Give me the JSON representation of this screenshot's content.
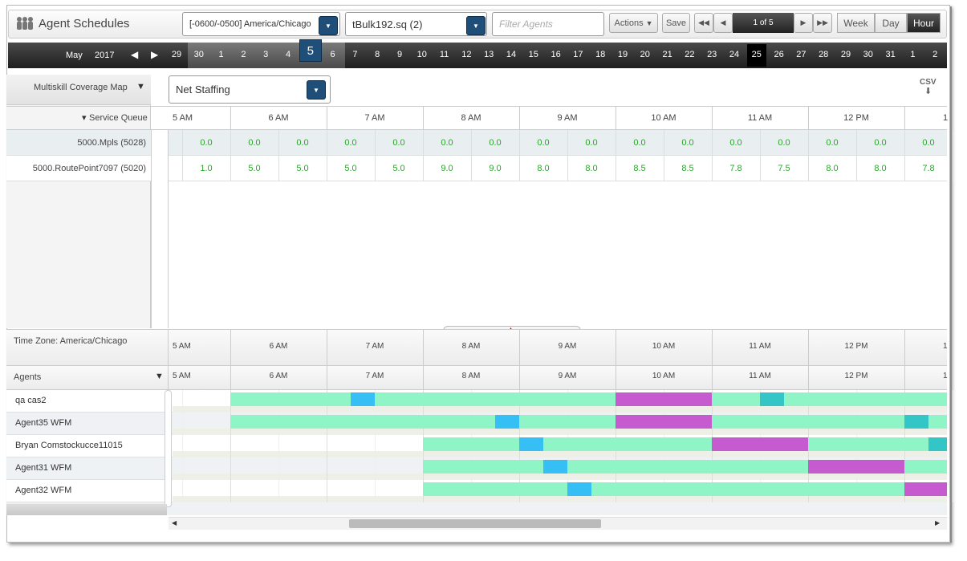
{
  "header": {
    "title": "Agent Schedules",
    "timezone": "[-0600/-0500] America/Chicago",
    "queue": "tBulk192.sq (2)",
    "filter_placeholder": "Filter Agents",
    "actions": "Actions",
    "save": "Save",
    "pager": "1 of 5",
    "views": [
      "Week",
      "Day",
      "Hour"
    ]
  },
  "date_bar": {
    "month": "May",
    "year": "2017",
    "dates": [
      29,
      30,
      1,
      2,
      3,
      4,
      5,
      6,
      7,
      8,
      9,
      10,
      11,
      12,
      13,
      14,
      15,
      16,
      17,
      18,
      19,
      20,
      21,
      22,
      23,
      24,
      25,
      26,
      27,
      28,
      29,
      30,
      31,
      1,
      2
    ]
  },
  "coverage": {
    "map_label": "Multiskill Coverage Map",
    "metric": "Net Staffing",
    "csv": "CSV",
    "queue_header": "Service Queue",
    "hours": [
      "5 AM",
      "6 AM",
      "7 AM",
      "8 AM",
      "9 AM",
      "10 AM",
      "11 AM",
      "12 PM",
      "1"
    ],
    "queues": [
      {
        "name": "5000.Mpls (5028)",
        "values": [
          "0.0",
          "0.0",
          "0.0",
          "0.0",
          "0.0",
          "0.0",
          "0.0",
          "0.0",
          "0.0",
          "0.0",
          "0.0",
          "0.0",
          "0.0",
          "0.0",
          "0.0",
          "0.0"
        ]
      },
      {
        "name": "5000.RoutePoint7097 (5020)",
        "values": [
          "1.0",
          "5.0",
          "5.0",
          "5.0",
          "5.0",
          "9.0",
          "9.0",
          "8.0",
          "8.0",
          "8.5",
          "8.5",
          "7.8",
          "7.5",
          "8.0",
          "8.0",
          "7.8"
        ]
      }
    ]
  },
  "schedule": {
    "timezone_label": "Time Zone: America/Chicago",
    "agents_header": "Agents",
    "hours": [
      "5 AM",
      "6 AM",
      "7 AM",
      "8 AM",
      "9 AM",
      "10 AM",
      "11 AM",
      "12 PM",
      "1"
    ],
    "agents": [
      "qa cas2",
      "Agent35 WFM",
      "Bryan Comstockucce11015",
      "Agent31 WFM",
      "Agent32 WFM"
    ]
  }
}
